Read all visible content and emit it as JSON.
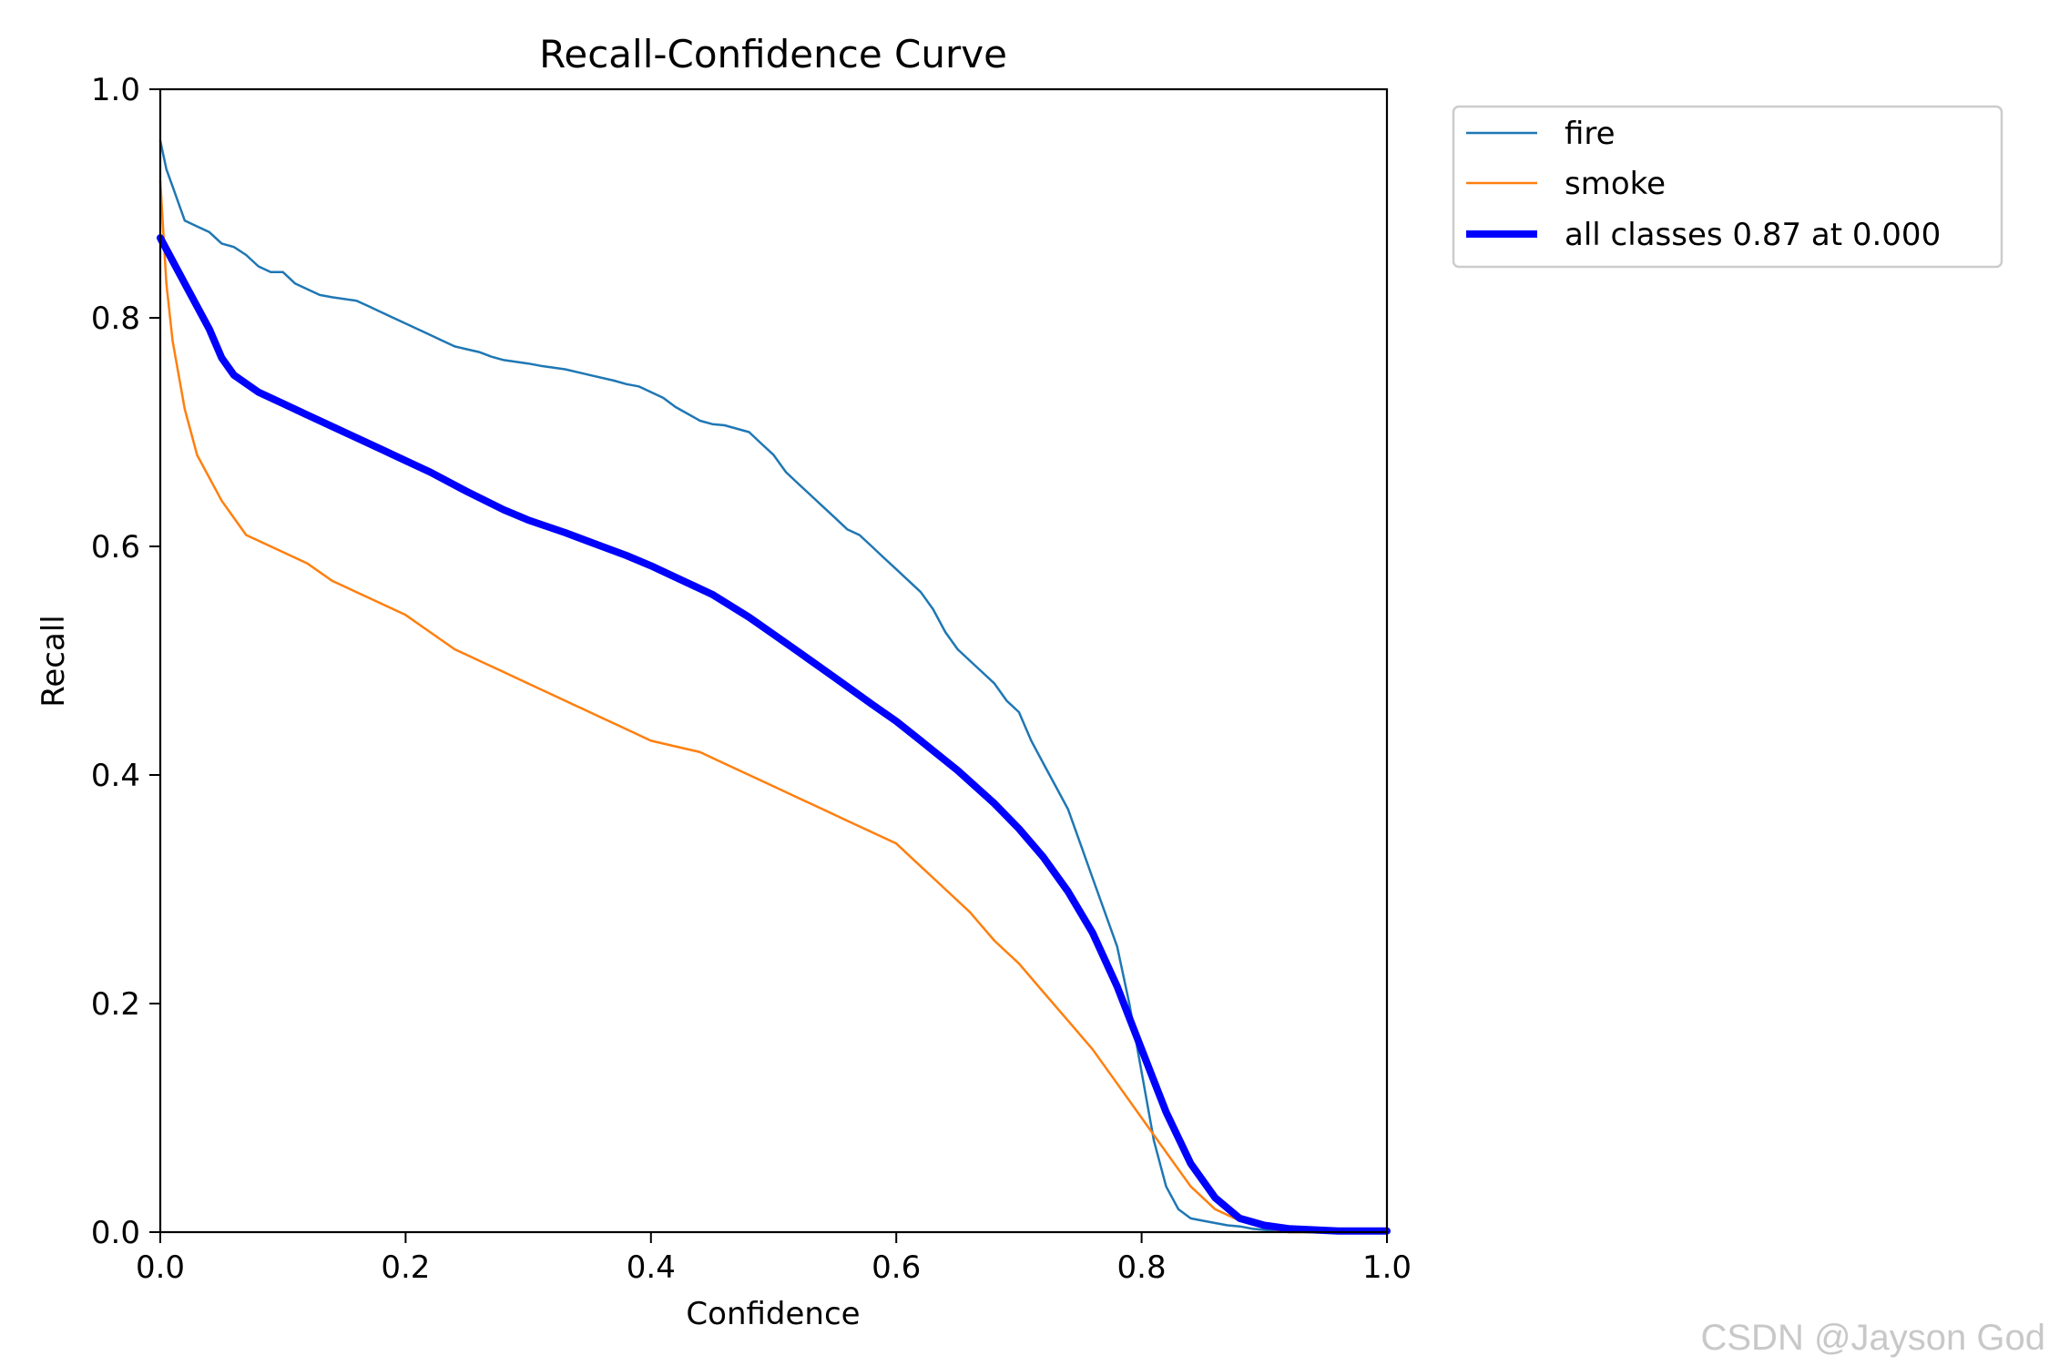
{
  "chart_data": {
    "type": "line",
    "title": "Recall-Confidence Curve",
    "xlabel": "Confidence",
    "ylabel": "Recall",
    "xlim": [
      0.0,
      1.0
    ],
    "ylim": [
      0.0,
      1.0
    ],
    "xticks": [
      "0.0",
      "0.2",
      "0.4",
      "0.6",
      "0.8",
      "1.0"
    ],
    "yticks": [
      "0.0",
      "0.2",
      "0.4",
      "0.6",
      "0.8",
      "1.0"
    ],
    "grid": false,
    "legend_position": "outside-right",
    "series": [
      {
        "name": "fire",
        "color": "#1f77b4",
        "x": [
          0.0,
          0.005,
          0.01,
          0.015,
          0.02,
          0.03,
          0.04,
          0.05,
          0.06,
          0.07,
          0.08,
          0.09,
          0.1,
          0.11,
          0.12,
          0.13,
          0.14,
          0.16,
          0.17,
          0.18,
          0.19,
          0.2,
          0.22,
          0.23,
          0.24,
          0.26,
          0.27,
          0.28,
          0.3,
          0.31,
          0.33,
          0.35,
          0.37,
          0.38,
          0.39,
          0.41,
          0.42,
          0.44,
          0.45,
          0.46,
          0.48,
          0.49,
          0.5,
          0.51,
          0.52,
          0.53,
          0.54,
          0.55,
          0.56,
          0.57,
          0.58,
          0.59,
          0.6,
          0.61,
          0.62,
          0.63,
          0.64,
          0.65,
          0.66,
          0.67,
          0.68,
          0.69,
          0.7,
          0.71,
          0.72,
          0.73,
          0.74,
          0.75,
          0.76,
          0.77,
          0.78,
          0.79,
          0.8,
          0.81,
          0.82,
          0.83,
          0.84,
          0.85,
          0.86,
          0.87,
          0.88,
          0.89,
          0.9,
          0.91,
          0.92,
          0.95,
          1.0
        ],
        "y": [
          0.955,
          0.93,
          0.915,
          0.9,
          0.885,
          0.88,
          0.875,
          0.865,
          0.862,
          0.855,
          0.845,
          0.84,
          0.84,
          0.83,
          0.825,
          0.82,
          0.818,
          0.815,
          0.81,
          0.805,
          0.8,
          0.795,
          0.785,
          0.78,
          0.775,
          0.77,
          0.766,
          0.763,
          0.76,
          0.758,
          0.755,
          0.75,
          0.745,
          0.742,
          0.74,
          0.73,
          0.722,
          0.71,
          0.707,
          0.706,
          0.7,
          0.69,
          0.68,
          0.665,
          0.655,
          0.645,
          0.635,
          0.625,
          0.615,
          0.61,
          0.6,
          0.59,
          0.58,
          0.57,
          0.56,
          0.545,
          0.525,
          0.51,
          0.5,
          0.49,
          0.48,
          0.465,
          0.455,
          0.43,
          0.41,
          0.39,
          0.37,
          0.34,
          0.31,
          0.28,
          0.25,
          0.2,
          0.14,
          0.08,
          0.04,
          0.02,
          0.012,
          0.01,
          0.008,
          0.006,
          0.005,
          0.003,
          0.002,
          0.001,
          0.0,
          0.0,
          0.0
        ]
      },
      {
        "name": "smoke",
        "color": "#ff7f0e",
        "x": [
          0.0,
          0.005,
          0.01,
          0.015,
          0.02,
          0.025,
          0.03,
          0.04,
          0.05,
          0.06,
          0.07,
          0.08,
          0.09,
          0.1,
          0.12,
          0.14,
          0.16,
          0.18,
          0.2,
          0.22,
          0.24,
          0.26,
          0.28,
          0.3,
          0.32,
          0.34,
          0.36,
          0.38,
          0.4,
          0.42,
          0.44,
          0.46,
          0.48,
          0.5,
          0.52,
          0.54,
          0.56,
          0.58,
          0.6,
          0.62,
          0.64,
          0.66,
          0.68,
          0.7,
          0.72,
          0.74,
          0.76,
          0.78,
          0.8,
          0.82,
          0.84,
          0.86,
          0.88,
          0.9,
          0.92,
          1.0
        ],
        "y": [
          0.92,
          0.83,
          0.78,
          0.75,
          0.72,
          0.7,
          0.68,
          0.66,
          0.64,
          0.625,
          0.61,
          0.605,
          0.6,
          0.595,
          0.585,
          0.57,
          0.56,
          0.55,
          0.54,
          0.525,
          0.51,
          0.5,
          0.49,
          0.48,
          0.47,
          0.46,
          0.45,
          0.44,
          0.43,
          0.425,
          0.42,
          0.41,
          0.4,
          0.39,
          0.38,
          0.37,
          0.36,
          0.35,
          0.34,
          0.32,
          0.3,
          0.28,
          0.255,
          0.235,
          0.21,
          0.185,
          0.16,
          0.13,
          0.1,
          0.07,
          0.04,
          0.02,
          0.01,
          0.004,
          0.0,
          0.0
        ]
      },
      {
        "name": "all classes 0.87 at 0.000",
        "color": "#0000ff",
        "x": [
          0.0,
          0.02,
          0.04,
          0.05,
          0.06,
          0.08,
          0.1,
          0.12,
          0.15,
          0.18,
          0.2,
          0.22,
          0.25,
          0.28,
          0.3,
          0.33,
          0.36,
          0.38,
          0.4,
          0.42,
          0.45,
          0.48,
          0.5,
          0.52,
          0.55,
          0.58,
          0.6,
          0.62,
          0.65,
          0.68,
          0.7,
          0.72,
          0.74,
          0.76,
          0.78,
          0.8,
          0.82,
          0.84,
          0.86,
          0.88,
          0.9,
          0.92,
          0.94,
          0.96,
          0.98,
          1.0
        ],
        "y": [
          0.87,
          0.83,
          0.79,
          0.765,
          0.75,
          0.735,
          0.725,
          0.715,
          0.7,
          0.685,
          0.675,
          0.665,
          0.648,
          0.632,
          0.623,
          0.612,
          0.6,
          0.592,
          0.583,
          0.573,
          0.558,
          0.538,
          0.523,
          0.508,
          0.485,
          0.462,
          0.447,
          0.43,
          0.404,
          0.375,
          0.353,
          0.328,
          0.298,
          0.262,
          0.215,
          0.16,
          0.105,
          0.06,
          0.03,
          0.012,
          0.006,
          0.003,
          0.002,
          0.001,
          0.001,
          0.001
        ]
      }
    ]
  },
  "watermark": "CSDN @Jayson God"
}
